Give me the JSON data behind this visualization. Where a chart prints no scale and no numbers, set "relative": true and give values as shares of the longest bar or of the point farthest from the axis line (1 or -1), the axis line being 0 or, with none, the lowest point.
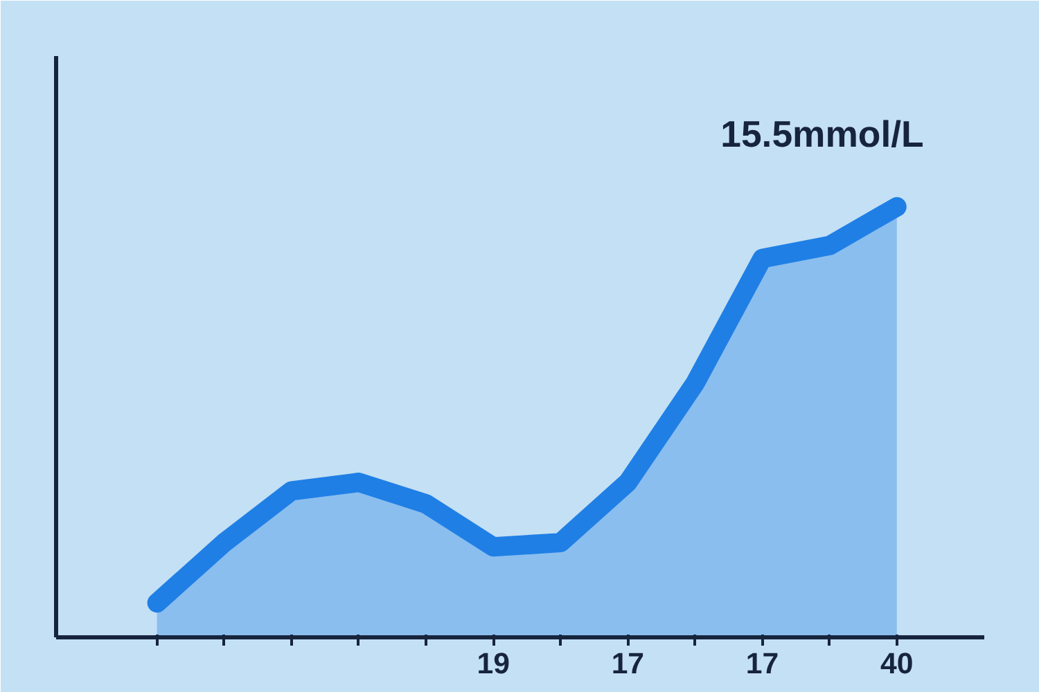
{
  "chart_data": {
    "type": "area",
    "relative": true,
    "categories": [
      null,
      null,
      null,
      null,
      null,
      "19",
      null,
      "17",
      null,
      "17",
      null,
      "40"
    ],
    "series": [
      {
        "color": "#1f7fe5",
        "values": [
          0.08,
          0.22,
          0.34,
          0.36,
          0.31,
          0.21,
          0.22,
          0.36,
          0.59,
          0.88,
          0.91,
          1.0
        ]
      }
    ],
    "annotations": [
      "15.5mmol/L"
    ],
    "grid": false
  }
}
